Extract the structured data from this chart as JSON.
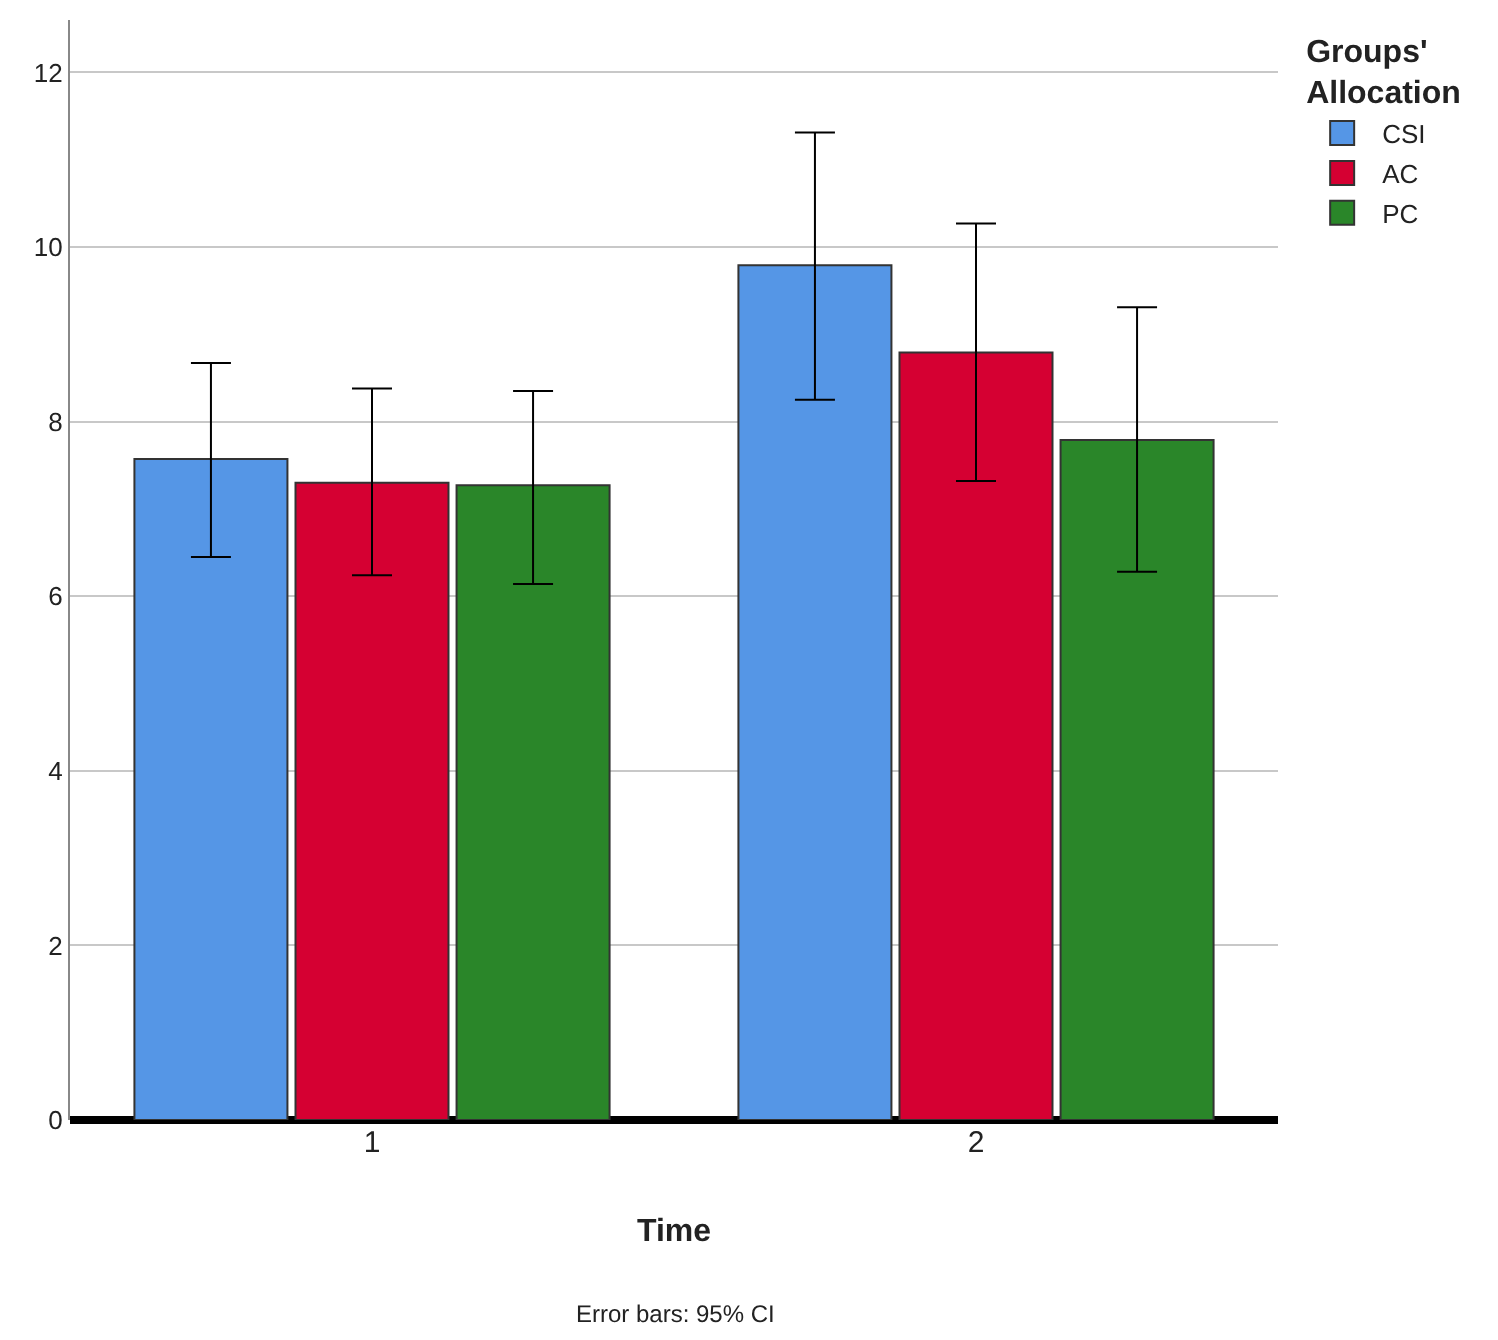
{
  "chart_data": {
    "type": "bar",
    "xlabel": "Time",
    "legend_title": "Groups' Allocation",
    "categories": [
      "1",
      "2"
    ],
    "series": [
      {
        "name": "CSI",
        "color": "#5596e6",
        "values": [
          7.57,
          9.79
        ],
        "errors": [
          [
            6.45,
            8.67
          ],
          [
            8.25,
            11.31
          ]
        ]
      },
      {
        "name": "AC",
        "color": "#d50032",
        "values": [
          7.3,
          8.79
        ],
        "errors": [
          [
            6.24,
            8.38
          ],
          [
            7.32,
            10.27
          ]
        ]
      },
      {
        "name": "PC",
        "color": "#2a8629",
        "values": [
          7.27,
          7.79
        ],
        "errors": [
          [
            6.14,
            8.35
          ],
          [
            6.28,
            9.31
          ]
        ]
      }
    ],
    "ylim": [
      0,
      12.6
    ],
    "yticks": [
      0,
      2,
      4,
      6,
      8,
      10,
      12
    ],
    "grid": "y",
    "legend": "top right",
    "annotations": [
      "Error bars: 95% CI"
    ]
  }
}
